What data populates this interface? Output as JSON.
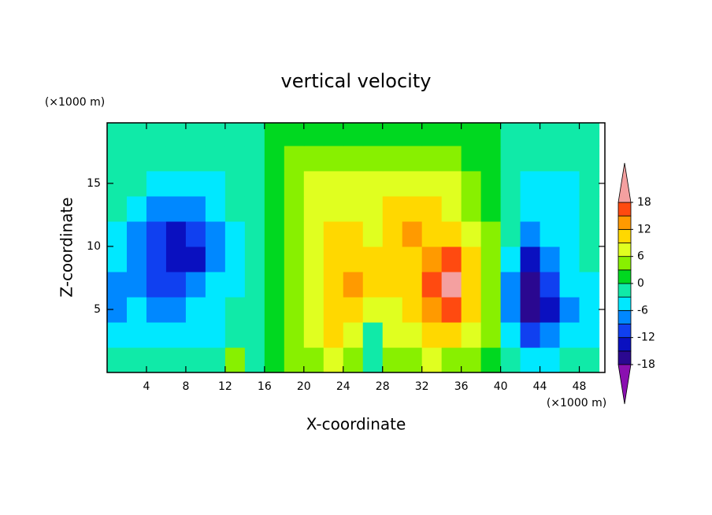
{
  "chart_data": {
    "type": "contour",
    "title": "vertical velocity",
    "x_label": "X-coordinate",
    "y_label": "Z-coordinate",
    "x_units": "(×1000 m)",
    "y_units": "(×1000 m)",
    "xlim": [
      0,
      50.6
    ],
    "ylim": [
      0,
      19.8
    ],
    "xticks": [
      4,
      8,
      12,
      16,
      20,
      24,
      28,
      32,
      36,
      40,
      44,
      48
    ],
    "yticks": [
      5,
      10,
      15
    ],
    "x": [
      1,
      3,
      5,
      7,
      9,
      11,
      13,
      15,
      17,
      19,
      21,
      23,
      25,
      27,
      29,
      31,
      33,
      35,
      37,
      39,
      41,
      43,
      45,
      47,
      49
    ],
    "y": [
      1,
      3,
      5,
      7,
      9,
      11,
      13,
      15,
      17,
      19
    ],
    "z": [
      [
        -1.5,
        -1.5,
        -1.5,
        -1.5,
        -1.5,
        -1.5,
        4,
        -1.5,
        1.5,
        4,
        4,
        7,
        4,
        -1.5,
        4,
        4,
        7,
        4,
        4,
        1.5,
        -1.5,
        -4.5,
        -4.5,
        -1.5,
        -1.5
      ],
      [
        -4.5,
        -4.5,
        -4.5,
        -4.5,
        -4.5,
        -4.5,
        -1.5,
        -1.5,
        1.5,
        4,
        7,
        10.5,
        7,
        -1.5,
        7,
        7,
        10.5,
        10.5,
        7,
        4,
        -4.5,
        -10.5,
        -7.5,
        -4.5,
        -4.5
      ],
      [
        -7.5,
        -4.5,
        -7.5,
        -7.5,
        -4.5,
        -4.5,
        -1.5,
        -1.5,
        1.5,
        4,
        7,
        10.5,
        10.5,
        7,
        7,
        10.5,
        13.5,
        16.5,
        10.5,
        4,
        -7.5,
        -16.5,
        -13.5,
        -7.5,
        -4.5
      ],
      [
        -7.5,
        -7.5,
        -10.5,
        -10.5,
        -7.5,
        -4.5,
        -4.5,
        -1.5,
        1.5,
        4,
        7,
        10.5,
        13.5,
        10.5,
        10.5,
        10.5,
        16.5,
        19.5,
        10.5,
        4,
        -7.5,
        -16.5,
        -10.5,
        -4.5,
        -4.5
      ],
      [
        -4.5,
        -7.5,
        -10.5,
        -13.5,
        -13.5,
        -7.5,
        -4.5,
        -1.5,
        1.5,
        4,
        7,
        10.5,
        10.5,
        10.5,
        10.5,
        10.5,
        13.5,
        16.5,
        10.5,
        4,
        -4.5,
        -13.5,
        -7.5,
        -4.5,
        -1.5
      ],
      [
        -4.5,
        -7.5,
        -10.5,
        -13.5,
        -10.5,
        -7.5,
        -4.5,
        -1.5,
        1.5,
        4,
        7,
        10.5,
        10.5,
        7,
        10.5,
        13.5,
        10.5,
        10.5,
        7,
        4,
        -1.5,
        -7.5,
        -4.5,
        -4.5,
        -1.5
      ],
      [
        -1.5,
        -4.5,
        -7.5,
        -7.5,
        -7.5,
        -4.5,
        -1.5,
        -1.5,
        1.5,
        4,
        7,
        7,
        7,
        7,
        10.5,
        10.5,
        10.5,
        7,
        4,
        1.5,
        -1.5,
        -4.5,
        -4.5,
        -4.5,
        -1.5
      ],
      [
        -1.5,
        -1.5,
        -4.5,
        -4.5,
        -4.5,
        -4.5,
        -1.5,
        -1.5,
        1.5,
        4,
        7,
        7,
        7,
        7,
        7,
        7,
        7,
        7,
        4,
        1.5,
        -1.5,
        -4.5,
        -4.5,
        -4.5,
        -1.5
      ],
      [
        -1.5,
        -1.5,
        -1.5,
        -1.5,
        -1.5,
        -1.5,
        -1.5,
        -1.5,
        1.5,
        4,
        4,
        4,
        4,
        4,
        4,
        4,
        4,
        4,
        1.5,
        1.5,
        -1.5,
        -1.5,
        -1.5,
        -1.5,
        -1.5
      ],
      [
        -1.5,
        -1.5,
        -1.5,
        -1.5,
        -1.5,
        -1.5,
        -1.5,
        -1.5,
        1.5,
        1.5,
        1.5,
        1.5,
        1.5,
        1.5,
        1.5,
        1.5,
        1.5,
        1.5,
        1.5,
        1.5,
        -1.5,
        -1.5,
        -1.5,
        -1.5,
        -1.5
      ]
    ],
    "levels": [
      -18,
      -15,
      -12,
      -9,
      -6,
      -3,
      0,
      3,
      6,
      9,
      12,
      15,
      18
    ],
    "colors": [
      "#8a10b0",
      "#2a0890",
      "#0a10c0",
      "#1040f0",
      "#0088ff",
      "#00e8ff",
      "#10eaa8",
      "#00d820",
      "#88f000",
      "#e0ff20",
      "#ffd800",
      "#ff9a00",
      "#ff4a10",
      "#f4a0a0"
    ],
    "colorbar_ticks": [
      -18,
      -12,
      -6,
      0,
      6,
      12,
      18
    ]
  }
}
